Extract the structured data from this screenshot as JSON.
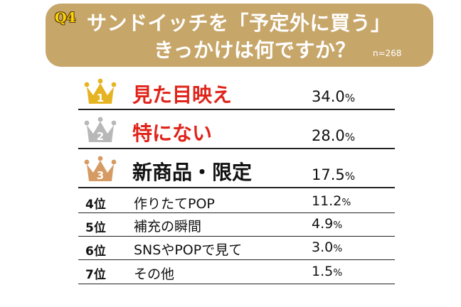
{
  "header": {
    "badge": "Q4",
    "title_line1": "サンドイッチを「予定外に買う」",
    "title_line2": "きっかけは何ですか？",
    "sample_size": "n=268"
  },
  "colors": {
    "header_bg": "#c7a66a",
    "badge": "#ffd400",
    "gold": "#e6b422",
    "silver": "#b8b8b8",
    "bronze": "#d69a63",
    "accent_red": "#e0241b"
  },
  "chart_data": {
    "type": "table",
    "unit": "%",
    "rows": [
      {
        "rank": "1",
        "label": "見た目映え",
        "value": 34.0,
        "value_text": "34.0",
        "icon": "gold-crown-icon"
      },
      {
        "rank": "2",
        "label": "特にない",
        "value": 28.0,
        "value_text": "28.0",
        "icon": "silver-crown-icon"
      },
      {
        "rank": "3",
        "label": "新商品・限定",
        "value": 17.5,
        "value_text": "17.5",
        "icon": "bronze-crown-icon"
      },
      {
        "rank": "4位",
        "label": "作りたてPOP",
        "value": 11.2,
        "value_text": "11.2"
      },
      {
        "rank": "5位",
        "label": "補充の瞬間",
        "value": 4.9,
        "value_text": "4.9"
      },
      {
        "rank": "6位",
        "label": "SNSやPOPで見て",
        "value": 3.0,
        "value_text": "3.0"
      },
      {
        "rank": "7位",
        "label": "その他",
        "value": 1.5,
        "value_text": "1.5"
      }
    ]
  }
}
